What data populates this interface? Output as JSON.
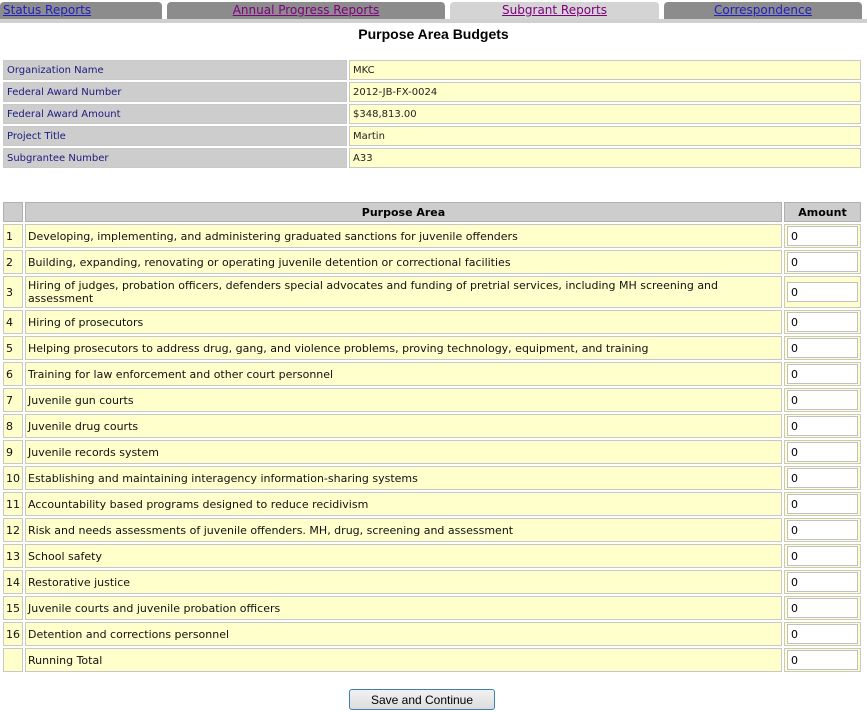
{
  "tabs": [
    {
      "label": "Status Reports"
    },
    {
      "label": "Annual Progress Reports"
    },
    {
      "label": "Subgrant Reports",
      "active": true
    },
    {
      "label": "Correspondence"
    }
  ],
  "page_title": "Purpose Area Budgets",
  "info": [
    {
      "label": "Organization Name",
      "value": "MKC"
    },
    {
      "label": "Federal Award Number",
      "value": "2012-JB-FX-0024"
    },
    {
      "label": "Federal Award Amount",
      "value": "$348,813.00"
    },
    {
      "label": "Project Title",
      "value": "Martin"
    },
    {
      "label": "Subgrantee Number",
      "value": "A33"
    }
  ],
  "budget": {
    "headers": {
      "purpose": "Purpose Area",
      "amount": "Amount"
    },
    "rows": [
      {
        "num": "1",
        "purpose": "Developing, implementing, and administering graduated sanctions for juvenile offenders",
        "amount": "0"
      },
      {
        "num": "2",
        "purpose": "Building, expanding, renovating or operating juvenile detention or correctional facilities",
        "amount": "0"
      },
      {
        "num": "3",
        "purpose": "Hiring of judges, probation officers, defenders special advocates and funding of pretrial services, including MH screening and assessment",
        "amount": "0"
      },
      {
        "num": "4",
        "purpose": "Hiring of prosecutors",
        "amount": "0"
      },
      {
        "num": "5",
        "purpose": "Helping prosecutors to address drug, gang, and violence problems, proving technology, equipment, and training",
        "amount": "0"
      },
      {
        "num": "6",
        "purpose": "Training for law enforcement and other court personnel",
        "amount": "0"
      },
      {
        "num": "7",
        "purpose": "Juvenile gun courts",
        "amount": "0"
      },
      {
        "num": "8",
        "purpose": "Juvenile drug courts",
        "amount": "0"
      },
      {
        "num": "9",
        "purpose": "Juvenile records system",
        "amount": "0"
      },
      {
        "num": "10",
        "purpose": "Establishing and maintaining interagency information-sharing systems",
        "amount": "0"
      },
      {
        "num": "11",
        "purpose": "Accountability based programs designed to reduce recidivism",
        "amount": "0"
      },
      {
        "num": "12",
        "purpose": "Risk and needs assessments of juvenile offenders. MH, drug, screening and assessment",
        "amount": "0"
      },
      {
        "num": "13",
        "purpose": "School safety",
        "amount": "0"
      },
      {
        "num": "14",
        "purpose": "Restorative justice",
        "amount": "0"
      },
      {
        "num": "15",
        "purpose": "Juvenile courts and juvenile probation officers",
        "amount": "0"
      },
      {
        "num": "16",
        "purpose": "Detention and corrections personnel",
        "amount": "0"
      }
    ],
    "total": {
      "label": "Running Total",
      "amount": "0"
    }
  },
  "save_button": "Save and Continue"
}
